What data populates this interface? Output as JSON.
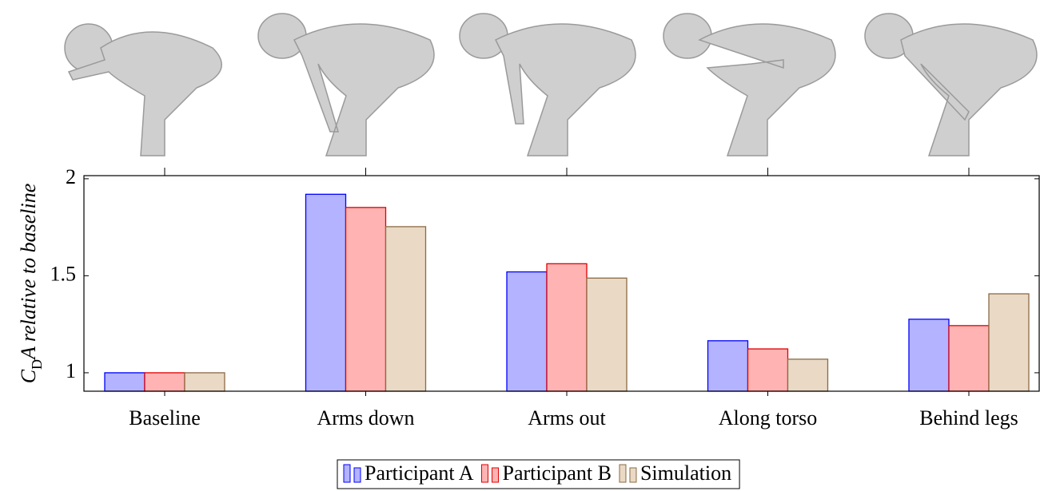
{
  "chart_data": {
    "type": "bar",
    "y_label": [
      "C",
      "D",
      "A relative to baseline"
    ],
    "categories": [
      "Baseline",
      "Arms down",
      "Arms out",
      "Along torso",
      "Behind legs"
    ],
    "series": [
      {
        "name": "Participant A",
        "color": "#b3b3ff",
        "edge": "#0000ff",
        "values": [
          1.0,
          1.92,
          1.52,
          1.165,
          1.276
        ]
      },
      {
        "name": "Participant B",
        "color": "#ffb3b3",
        "edge": "#e00000",
        "values": [
          1.0,
          1.852,
          1.562,
          1.123,
          1.243
        ]
      },
      {
        "name": "Simulation",
        "color": "#e9d9c5",
        "edge": "#8b6b45",
        "values": [
          1.0,
          1.753,
          1.488,
          1.07,
          1.407
        ]
      }
    ],
    "ylim": [
      0.905,
      2.016
    ],
    "yticks": [
      1,
      1.5,
      2
    ],
    "legend": "bottom"
  }
}
